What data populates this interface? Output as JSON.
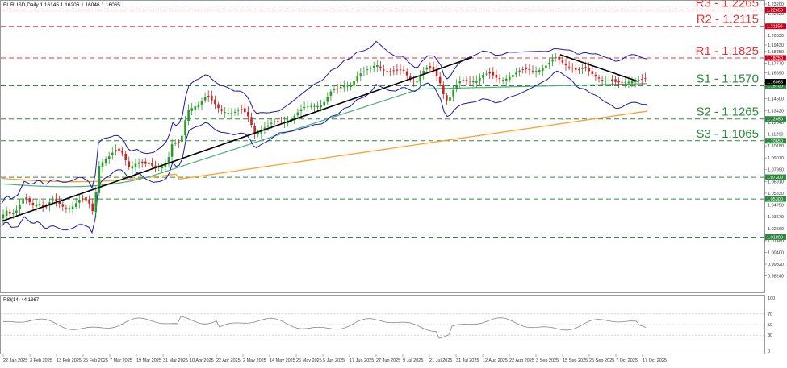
{
  "symbol_header": "EURUSD,Daily  1.16145 1.16206 1.16046 1.16065",
  "rsi_header": "RSI(14) 44.1367",
  "colors": {
    "up": "#2a9a2a",
    "down": "#cc2222",
    "bollinger": "#1a1ab0",
    "ma100": "#4caf7a",
    "ma200": "#ffa12b",
    "trend": "#000000",
    "resistance": "#e0393b",
    "support": "#2b8a3e",
    "rsi": "#888888"
  },
  "levels": [
    {
      "label": "R3 - 1.2265",
      "price": 1.2265,
      "type": "resistance",
      "tag": "1.22650"
    },
    {
      "label": "R2 - 1.2115",
      "price": 1.2115,
      "type": "resistance",
      "tag": "1.21150"
    },
    {
      "label": "R1 - 1.1825",
      "price": 1.1825,
      "type": "resistance",
      "tag": "1.18250"
    },
    {
      "label": "S1 - 1.1570",
      "price": 1.157,
      "type": "support",
      "tag": "1.15700"
    },
    {
      "label": "S2 - 1.1265",
      "price": 1.1265,
      "type": "support",
      "tag": "1.12650"
    },
    {
      "label": "S3 - 1.1065",
      "price": 1.1065,
      "type": "support",
      "tag": "1.10650"
    },
    {
      "label": "",
      "price": 1.073,
      "type": "support",
      "tag": "1.07300"
    },
    {
      "label": "",
      "price": 1.053,
      "type": "support",
      "tag": "1.05300"
    },
    {
      "label": "",
      "price": 1.018,
      "type": "support",
      "tag": "1.01800"
    }
  ],
  "chart_data": {
    "type": "candlestick",
    "title": "EURUSD,Daily",
    "ylim": [
      0.9725,
      1.232
    ],
    "y_ticks": [
      "1.23200",
      "1.22320",
      "1.21230",
      "1.20330",
      "1.19430",
      "1.18850",
      "1.17770",
      "1.16890",
      "1.15980",
      "1.14500",
      "1.13420",
      "1.12340",
      "1.11260",
      "1.10180",
      "1.09070",
      "1.07990",
      "1.06910",
      "1.05830",
      "1.04750",
      "1.03670",
      "1.02560",
      "1.01480",
      "1.00400",
      "0.99320",
      "0.98240"
    ],
    "x_ticks": [
      "22 Jan 2025",
      "3 Feb 2025",
      "13 Feb 2025",
      "25 Feb 2025",
      "7 Mar 2025",
      "19 Mar 2025",
      "31 Mar 2025",
      "10 Apr 2025",
      "22 Apr 2025",
      "2 May 2025",
      "14 May 2025",
      "26 May 2025",
      "5 Jun 2025",
      "17 Jun 2025",
      "27 Jun 2025",
      "9 Jul 2025",
      "21 Jul 2025",
      "31 Jul 2025",
      "12 Aug 2025",
      "22 Aug 2025",
      "3 Sep 2025",
      "15 Sep 2025",
      "25 Sep 2025",
      "7 Oct 2025",
      "17 Oct 2025"
    ],
    "series": [
      {
        "name": "Bollinger Bands",
        "type": "band"
      },
      {
        "name": "MA 100",
        "type": "line"
      },
      {
        "name": "MA 200",
        "type": "line"
      },
      {
        "name": "Trendline",
        "type": "line"
      }
    ],
    "current_price_tags": [
      "1.16065",
      "1.15700"
    ],
    "rsi": {
      "name": "RSI(14)",
      "value": 44.1367,
      "ylim": [
        0,
        100
      ],
      "levels": [
        30,
        50,
        70
      ],
      "ticks": [
        "100",
        "70",
        "50",
        "30",
        "0"
      ]
    }
  }
}
